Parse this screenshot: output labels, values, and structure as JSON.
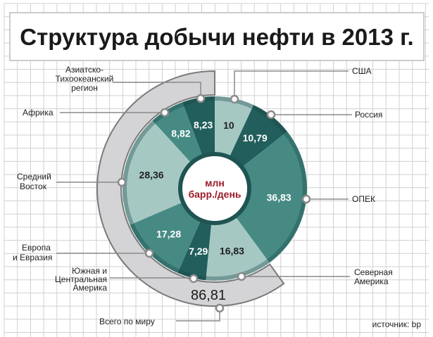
{
  "chart_data": {
    "type": "pie",
    "title": "Структура добычи нефти в 2013 г.",
    "unit_label": [
      "млн",
      "барр./день"
    ],
    "total_label": "Всего по миру",
    "total_value": "86,81",
    "source": "источник: bp",
    "categories": [
      "США",
      "Россия",
      "ОПЕК",
      "Северная Америка",
      "Южная и Центральная Америка",
      "Европа и Евразия",
      "Средний Восток",
      "Африка",
      "Азиатско-Тихоокеанский регион"
    ],
    "values": [
      10,
      10.79,
      36.83,
      16.83,
      7.29,
      17.28,
      28.36,
      8.82,
      8.23
    ],
    "value_labels": [
      "10",
      "10,79",
      "36,83",
      "16,83",
      "7,29",
      "17,28",
      "28,36",
      "8,82",
      "8,23"
    ],
    "label_lines": {
      "usa": [
        "США"
      ],
      "russia": [
        "Россия"
      ],
      "opec": [
        "ОПЕК"
      ],
      "north_america": [
        "Северная",
        "Америка"
      ],
      "south_america": [
        "Южная и",
        "Центральная",
        "Америка"
      ],
      "europe": [
        "Европа",
        "и Евразия"
      ],
      "middle_east": [
        "Средний",
        "Восток"
      ],
      "africa": [
        "Африка"
      ],
      "apac": [
        "Азиатско-",
        "Тихоокеанский",
        "регион"
      ]
    },
    "colors": {
      "light": "#a6c8c3",
      "mid": "#468a83",
      "dark": "#225e5b",
      "accent": "#9b1b2a",
      "ring": "#d4d4d6"
    }
  }
}
